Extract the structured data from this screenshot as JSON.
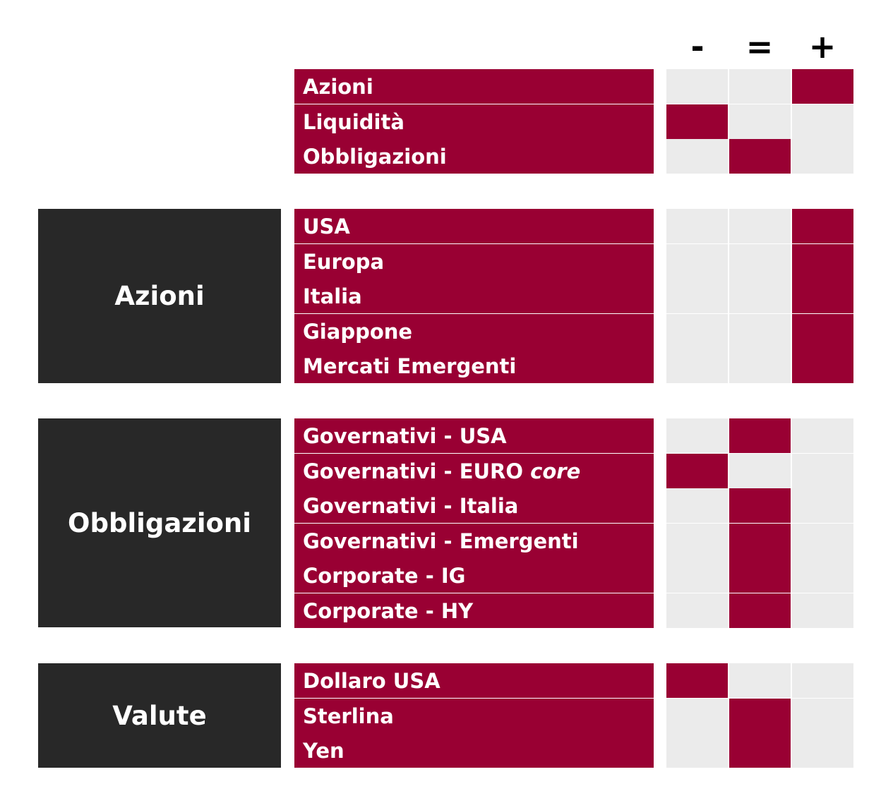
{
  "columns": [
    "-",
    "=",
    "+"
  ],
  "colors": {
    "accent": "#990033",
    "category_bg": "#282828",
    "empty_cell": "#ebebeb"
  },
  "groups": [
    {
      "category": "",
      "rows": [
        {
          "label": "Azioni",
          "rating": "+"
        },
        {
          "label": "Liquidità",
          "rating": "-"
        },
        {
          "label": "Obbligazioni",
          "rating": "="
        }
      ]
    },
    {
      "category": "Azioni",
      "rows": [
        {
          "label": "USA",
          "rating": "+"
        },
        {
          "label": "Europa",
          "rating": "+"
        },
        {
          "label": "Italia",
          "rating": "+"
        },
        {
          "label": "Giappone",
          "rating": "+"
        },
        {
          "label": "Mercati Emergenti",
          "rating": "+"
        }
      ]
    },
    {
      "category": "Obbligazioni",
      "rows": [
        {
          "label": "Governativi - USA",
          "rating": "="
        },
        {
          "label": "Governativi - EURO",
          "label_italic": "core",
          "rating": "-"
        },
        {
          "label": "Governativi - Italia",
          "rating": "="
        },
        {
          "label": "Governativi - Emergenti",
          "rating": "="
        },
        {
          "label": "Corporate - IG",
          "rating": "="
        },
        {
          "label": "Corporate - HY",
          "rating": "="
        }
      ]
    },
    {
      "category": "Valute",
      "rows": [
        {
          "label": "Dollaro USA",
          "rating": "-"
        },
        {
          "label": "Sterlina",
          "rating": "="
        },
        {
          "label": "Yen",
          "rating": "="
        }
      ]
    }
  ]
}
